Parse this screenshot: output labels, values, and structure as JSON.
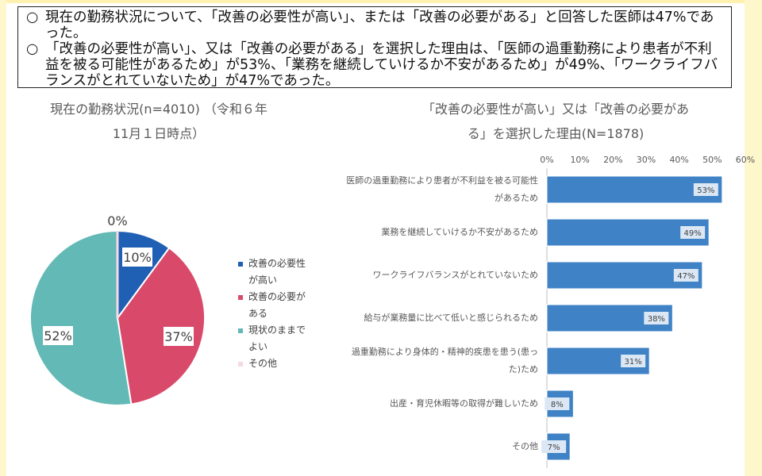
{
  "summary": [
    {
      "mark": "○",
      "text": "現在の勤務状況について、「改善の必要性が高い」、または「改善の必要がある」と回答した医師は47%であった。"
    },
    {
      "mark": "○",
      "text": "「改善の必要性が高い」、又は「改善の必要がある」を選択した理由は、「医師の過重勤務により患者が不利益を被る可能性があるため」が53%、「業務を継続していけるか不安があるため」が49%、「ワークライフバランスがとれていないため」が47%であった。"
    }
  ],
  "pie_title_line1": "現在の勤務状況(n=4010) （令和６年",
  "pie_title_line2": "11月１日時点）",
  "bar_title_line1": "「改善の必要性が高い」又は「改善の必要があ",
  "bar_title_line2": "る」を選択した理由(N=1878)",
  "pie_legend": [
    {
      "label": "改善の必要性が高い",
      "color": "#1f5fb4"
    },
    {
      "label": "改善の必要がある",
      "color": "#d94a6a"
    },
    {
      "label": "現状のままでよい",
      "color": "#62b9b6"
    },
    {
      "label": "その他",
      "color": "#f5d9e4"
    }
  ],
  "chart_data": [
    {
      "type": "pie",
      "title": "現在の勤務状況(n=4010) （令和６年11月１日時点）",
      "labels": [
        "改善の必要性が高い",
        "改善の必要がある",
        "現状のままでよい",
        "その他"
      ],
      "values": [
        10,
        37,
        52,
        0
      ],
      "value_labels": [
        "10%",
        "37%",
        "52%",
        "0%"
      ],
      "colors": [
        "#1f5fb4",
        "#d94a6a",
        "#62b9b6",
        "#f5d9e4"
      ],
      "legend": "right"
    },
    {
      "type": "bar",
      "orientation": "horizontal",
      "title": "「改善の必要性が高い」又は「改善の必要がある」を選択した理由(N=1878)",
      "categories": [
        "医師の過重勤務により患者が不利益を被る可能性があるため",
        "業務を継続していけるか不安があるため",
        "ワークライフバランスがとれていないため",
        "給与が業務量に比べて低いと感じられるため",
        "過重勤務により身体的・精神的疾患を患う(患った)ため",
        "出産・育児休暇等の取得が難しいため",
        "その他"
      ],
      "values": [
        53,
        49,
        47,
        38,
        31,
        8,
        7
      ],
      "value_labels": [
        "53%",
        "49%",
        "47%",
        "38%",
        "31%",
        "8%",
        "7%"
      ],
      "xlim": [
        0,
        60
      ],
      "ticks": [
        "0%",
        "10%",
        "20%",
        "30%",
        "40%",
        "50%",
        "60%"
      ],
      "bar_color": "#3f82c6",
      "grid": true
    }
  ]
}
